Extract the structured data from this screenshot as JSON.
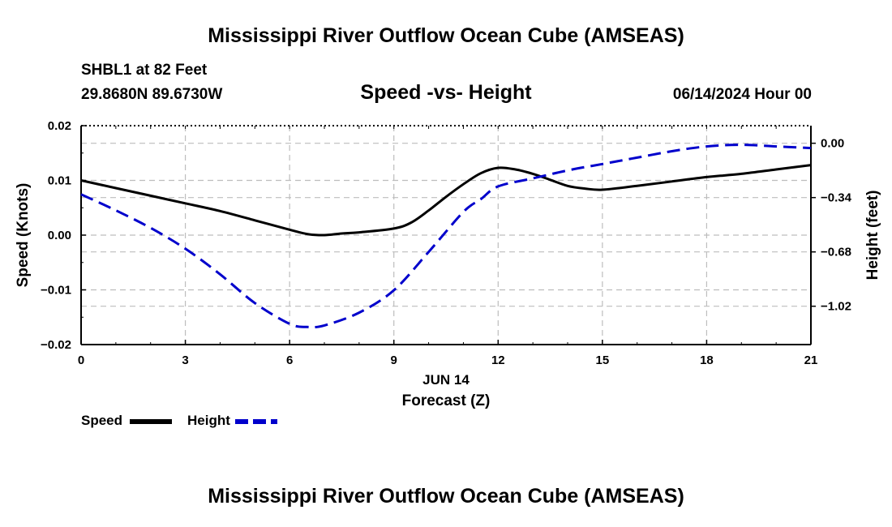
{
  "header": {
    "title": "Mississippi River Outflow Ocean Cube (AMSEAS)",
    "station": "SHBL1 at 82 Feet",
    "coords": "29.8680N  89.6730W",
    "subtitle": "Speed -vs- Height",
    "datehour": "06/14/2024 Hour 00"
  },
  "footer": {
    "title": "Mississippi River Outflow Ocean Cube (AMSEAS)"
  },
  "legend": {
    "speed_label": "Speed",
    "height_label": "Height"
  },
  "chart_data": {
    "type": "line",
    "title": "Speed -vs- Height",
    "xlabel": "Forecast (Z)",
    "xlabel_date": "JUN 14",
    "ylabel": "Speed (Knots)",
    "y2label": "Height (feet)",
    "xlim": [
      0,
      21
    ],
    "ylim": [
      -0.02,
      0.02
    ],
    "y2lim": [
      -1.26,
      0.11
    ],
    "xticks": [
      0,
      3,
      6,
      9,
      12,
      15,
      18,
      21
    ],
    "yticks": [
      -0.02,
      -0.01,
      0.0,
      0.01,
      0.02
    ],
    "yticklabels": [
      "−0.02",
      "−0.01",
      "0.00",
      "0.01",
      "0.02"
    ],
    "y2ticks": [
      0.0,
      -0.34,
      -0.68,
      -1.02
    ],
    "y2ticklabels": [
      "0.00",
      "−0.34",
      "−0.68",
      "−1.02"
    ],
    "grid": true,
    "legend_position": "bottom-left",
    "series": [
      {
        "name": "Speed",
        "axis": "left",
        "color": "#000000",
        "style": "solid",
        "x": [
          0,
          1,
          2,
          3,
          4,
          5,
          6,
          6.5,
          7,
          7.5,
          8,
          9,
          9.5,
          10,
          10.5,
          11,
          11.5,
          12,
          12.5,
          13,
          13.5,
          14,
          14.5,
          15,
          16,
          17,
          18,
          19,
          20,
          21
        ],
        "values": [
          0.01,
          0.0086,
          0.0072,
          0.0058,
          0.0044,
          0.0027,
          0.001,
          0.0002,
          0.0,
          0.0003,
          0.0005,
          0.0012,
          0.0023,
          0.0045,
          0.007,
          0.0093,
          0.0113,
          0.0123,
          0.012,
          0.0112,
          0.0101,
          0.009,
          0.0085,
          0.0083,
          0.009,
          0.0098,
          0.0106,
          0.0112,
          0.012,
          0.0128
        ]
      },
      {
        "name": "Height",
        "axis": "right",
        "color": "#0000cc",
        "style": "dashed",
        "x": [
          0,
          1,
          2,
          3,
          4,
          5,
          6,
          6.5,
          7,
          8,
          9,
          10,
          11,
          11.5,
          12,
          13,
          14,
          15,
          16,
          17,
          18,
          19,
          20,
          21
        ],
        "values": [
          -0.32,
          -0.42,
          -0.53,
          -0.66,
          -0.82,
          -1.0,
          -1.13,
          -1.15,
          -1.14,
          -1.06,
          -0.92,
          -0.68,
          -0.43,
          -0.35,
          -0.27,
          -0.22,
          -0.17,
          -0.13,
          -0.09,
          -0.05,
          -0.02,
          -0.01,
          -0.02,
          -0.03
        ]
      }
    ]
  }
}
